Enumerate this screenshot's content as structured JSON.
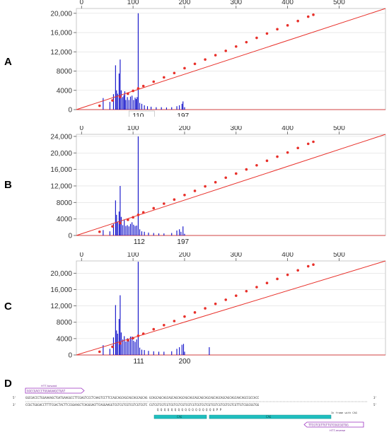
{
  "panels": [
    {
      "label": "A",
      "chart_data": {
        "type": "line",
        "x_ticks": [
          0,
          100,
          200,
          300,
          400,
          500
        ],
        "y_ticks": [
          0,
          4000,
          8000,
          12000,
          16000,
          20000
        ],
        "y_tick_labels": [
          "0",
          "4000",
          "8000",
          "12,000",
          "16,000",
          "20,000"
        ],
        "xlim": [
          -10,
          590
        ],
        "ylim": [
          0,
          21000
        ],
        "peak_labels": [
          "110",
          "197"
        ],
        "peak_label_x": [
          110,
          197
        ],
        "spikes": [
          [
            42,
            2400
          ],
          [
            55,
            1600
          ],
          [
            62,
            3200
          ],
          [
            66,
            9200
          ],
          [
            68,
            4000
          ],
          [
            70,
            3300
          ],
          [
            73,
            7500
          ],
          [
            75,
            10400
          ],
          [
            77,
            4000
          ],
          [
            80,
            2600
          ],
          [
            82,
            3000
          ],
          [
            84,
            3800
          ],
          [
            86,
            2000
          ],
          [
            89,
            2600
          ],
          [
            92,
            2000
          ],
          [
            95,
            2700
          ],
          [
            98,
            2900
          ],
          [
            101,
            2000
          ],
          [
            104,
            2500
          ],
          [
            106,
            2200
          ],
          [
            108,
            2600
          ],
          [
            110,
            20000
          ],
          [
            113,
            1400
          ],
          [
            117,
            1200
          ],
          [
            122,
            900
          ],
          [
            128,
            700
          ],
          [
            135,
            600
          ],
          [
            145,
            500
          ],
          [
            155,
            500
          ],
          [
            165,
            450
          ],
          [
            175,
            500
          ],
          [
            185,
            700
          ],
          [
            190,
            900
          ],
          [
            195,
            1200
          ],
          [
            197,
            1700
          ],
          [
            200,
            500
          ]
        ],
        "ladder": [
          [
            35,
            800
          ],
          [
            60,
            1900
          ],
          [
            75,
            2600
          ],
          [
            90,
            3300
          ],
          [
            100,
            3900
          ],
          [
            110,
            4400
          ],
          [
            120,
            4900
          ],
          [
            140,
            5800
          ],
          [
            160,
            6700
          ],
          [
            180,
            7600
          ],
          [
            200,
            8600
          ],
          [
            220,
            9500
          ],
          [
            240,
            10400
          ],
          [
            260,
            11300
          ],
          [
            280,
            12200
          ],
          [
            300,
            13100
          ],
          [
            320,
            14000
          ],
          [
            340,
            14900
          ],
          [
            360,
            15800
          ],
          [
            380,
            16700
          ],
          [
            400,
            17500
          ],
          [
            420,
            18400
          ],
          [
            440,
            19300
          ],
          [
            450,
            19700
          ]
        ],
        "line": [
          [
            -10,
            0
          ],
          [
            590,
            21000
          ]
        ]
      }
    },
    {
      "label": "B",
      "chart_data": {
        "type": "line",
        "x_ticks": [
          0,
          100,
          200,
          300,
          400,
          500
        ],
        "y_ticks": [
          0,
          4000,
          8000,
          12000,
          16000,
          20000,
          24000
        ],
        "y_tick_labels": [
          "0",
          "4000",
          "8000",
          "12,000",
          "16,000",
          "20,000",
          "24,000"
        ],
        "xlim": [
          -10,
          590
        ],
        "ylim": [
          0,
          24500
        ],
        "peak_labels": [
          "112",
          "197"
        ],
        "peak_label_x": [
          112,
          197
        ],
        "spikes": [
          [
            42,
            1300
          ],
          [
            55,
            1000
          ],
          [
            62,
            2800
          ],
          [
            66,
            8500
          ],
          [
            68,
            5000
          ],
          [
            70,
            3300
          ],
          [
            73,
            5800
          ],
          [
            75,
            12000
          ],
          [
            77,
            4500
          ],
          [
            80,
            2500
          ],
          [
            83,
            3800
          ],
          [
            86,
            2300
          ],
          [
            89,
            2500
          ],
          [
            92,
            2200
          ],
          [
            95,
            2800
          ],
          [
            98,
            3200
          ],
          [
            101,
            2600
          ],
          [
            104,
            2300
          ],
          [
            107,
            2400
          ],
          [
            110,
            24000
          ],
          [
            113,
            1500
          ],
          [
            117,
            1000
          ],
          [
            122,
            900
          ],
          [
            130,
            700
          ],
          [
            140,
            600
          ],
          [
            150,
            500
          ],
          [
            160,
            500
          ],
          [
            175,
            600
          ],
          [
            185,
            1200
          ],
          [
            190,
            1500
          ],
          [
            193,
            900
          ],
          [
            197,
            2200
          ],
          [
            200,
            400
          ]
        ],
        "ladder": [
          [
            35,
            900
          ],
          [
            60,
            2200
          ],
          [
            75,
            3000
          ],
          [
            90,
            3800
          ],
          [
            100,
            4400
          ],
          [
            110,
            5000
          ],
          [
            120,
            5600
          ],
          [
            140,
            6600
          ],
          [
            160,
            7700
          ],
          [
            180,
            8700
          ],
          [
            200,
            9800
          ],
          [
            220,
            10800
          ],
          [
            240,
            11900
          ],
          [
            260,
            12900
          ],
          [
            280,
            14000
          ],
          [
            300,
            15000
          ],
          [
            320,
            16000
          ],
          [
            340,
            17000
          ],
          [
            360,
            18100
          ],
          [
            380,
            19100
          ],
          [
            400,
            20100
          ],
          [
            420,
            21200
          ],
          [
            440,
            22200
          ],
          [
            450,
            22700
          ]
        ],
        "line": [
          [
            -10,
            0
          ],
          [
            590,
            24500
          ]
        ]
      }
    },
    {
      "label": "C",
      "chart_data": {
        "type": "line",
        "x_ticks": [
          0,
          100,
          200,
          300,
          400,
          500
        ],
        "y_ticks": [
          0,
          4000,
          8000,
          12000,
          16000,
          20000
        ],
        "y_tick_labels": [
          "0",
          "4000",
          "8000",
          "12,000",
          "16,000",
          "20,000"
        ],
        "xlim": [
          -10,
          590
        ],
        "ylim": [
          0,
          23000
        ],
        "peak_labels": [
          "111",
          "200"
        ],
        "peak_label_x": [
          111,
          200
        ],
        "spikes": [
          [
            42,
            2400
          ],
          [
            55,
            1500
          ],
          [
            62,
            4300
          ],
          [
            66,
            12200
          ],
          [
            68,
            6000
          ],
          [
            70,
            5200
          ],
          [
            73,
            8800
          ],
          [
            75,
            14600
          ],
          [
            77,
            5500
          ],
          [
            80,
            3800
          ],
          [
            83,
            4600
          ],
          [
            86,
            3300
          ],
          [
            89,
            4100
          ],
          [
            92,
            3600
          ],
          [
            95,
            4500
          ],
          [
            98,
            4500
          ],
          [
            101,
            3500
          ],
          [
            104,
            3200
          ],
          [
            107,
            3800
          ],
          [
            110,
            22800
          ],
          [
            113,
            1800
          ],
          [
            117,
            1300
          ],
          [
            122,
            1200
          ],
          [
            130,
            1000
          ],
          [
            140,
            900
          ],
          [
            150,
            800
          ],
          [
            160,
            800
          ],
          [
            175,
            900
          ],
          [
            185,
            1500
          ],
          [
            190,
            1900
          ],
          [
            195,
            2500
          ],
          [
            198,
            2700
          ],
          [
            200,
            800
          ],
          [
            248,
            1900
          ]
        ],
        "ladder": [
          [
            35,
            800
          ],
          [
            60,
            2000
          ],
          [
            75,
            2800
          ],
          [
            90,
            3600
          ],
          [
            100,
            4100
          ],
          [
            110,
            4700
          ],
          [
            120,
            5200
          ],
          [
            140,
            6300
          ],
          [
            160,
            7300
          ],
          [
            180,
            8300
          ],
          [
            200,
            9400
          ],
          [
            220,
            10400
          ],
          [
            240,
            11400
          ],
          [
            260,
            12500
          ],
          [
            280,
            13500
          ],
          [
            300,
            14500
          ],
          [
            320,
            15600
          ],
          [
            340,
            16600
          ],
          [
            360,
            17600
          ],
          [
            380,
            18600
          ],
          [
            400,
            19600
          ],
          [
            420,
            20700
          ],
          [
            440,
            21700
          ],
          [
            450,
            22100
          ]
        ],
        "line": [
          [
            -10,
            0
          ],
          [
            590,
            23000
          ]
        ]
      }
    }
  ],
  "panel_d": {
    "label": "D",
    "prime_5": "5'",
    "prime_3": "3'",
    "primer_fwd": "GGCCGACCCTGGAAAAGCTGAT",
    "primer_fwd_name": "HTT-forward",
    "primer_rev": "TTCGTCGTTGTTGTCGGCGGTGG",
    "primer_rev_name": "HTT-reverse",
    "seq_top": "GGCGACCCTGGAAAAGCTGATGAAGGCCTTCGAGTCCCTCAAGTCCTTCCAGCAGCAGCAGCAGCAGCAG   GCAGCAGCAGCAGCAGCAGCAGCAGCAGCAGCAGCAGCAGCAGCAGCAGCAACAGCCGCCACC",
    "seq_bot": "CCGCTGGGACCTTTTCGACTACTTCCGGAAGCTCAGGGAGTTCAGGAAGGTCGTCGTCGTCGTCGTCGTC   CGTCGTCGTCGTCGTCGTCGTCGTCGTCGTCGTCGTCGTCGTCGTCGTCGTTGTCGGCGGTGG",
    "aa_text": "Q  Q  Q  Q  Q  Q  Q  Q  Q  Q  Q  Q  Q  Q  Q  Q  Q  P  P",
    "inframe_note": "In frame with CAG",
    "orf_left": "CAG",
    "orf_right": "CAG",
    "colors": {
      "primer": "#9b30c0",
      "orf": "#1fbfbf",
      "text": "#333333"
    }
  },
  "colors": {
    "spike": "#0a0ac8",
    "ladder": "#e8302a",
    "axis": "#d04040",
    "grid": "#dddddd"
  }
}
